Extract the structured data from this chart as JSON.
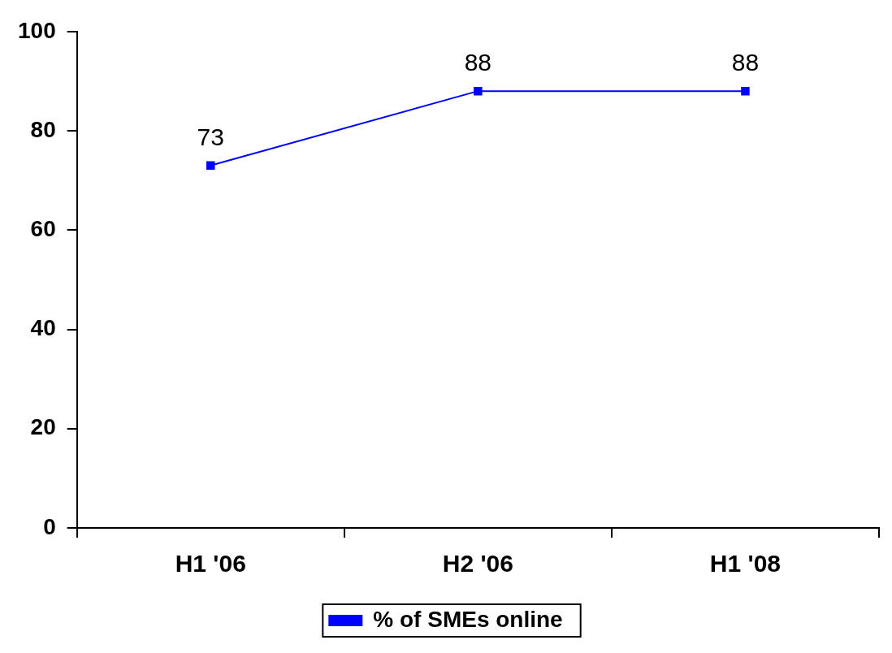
{
  "chart_data": {
    "type": "line",
    "categories": [
      "H1 '06",
      "H2 '06",
      "H1 '08"
    ],
    "series": [
      {
        "name": "% of SMEs online",
        "color": "#0000ff",
        "values": [
          73,
          88,
          88
        ]
      }
    ],
    "ylim": [
      0,
      100
    ],
    "yticks": [
      0,
      20,
      40,
      60,
      80,
      100
    ],
    "data_labels": true,
    "legend": "bottom",
    "marker": "square",
    "line_style": "solid",
    "grid": false
  }
}
